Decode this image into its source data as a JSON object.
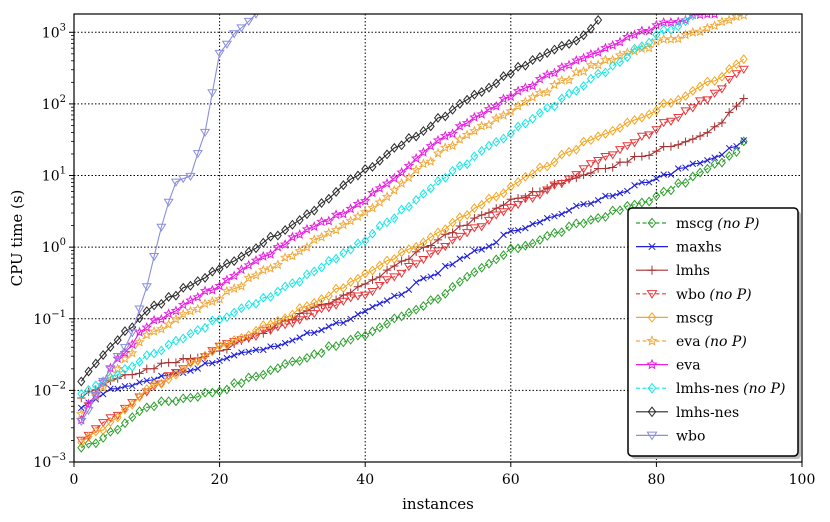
{
  "chart_data": {
    "type": "line",
    "title": "",
    "xlabel": "instances",
    "ylabel": "CPU time (s)",
    "xlim": [
      0,
      100
    ],
    "ylim": [
      0.001,
      1800
    ],
    "yscale": "log",
    "grid": true,
    "legend_position": "bottom-right",
    "x_ticks": [
      "0",
      "20",
      "40",
      "60",
      "80",
      "100"
    ],
    "x_tick_values": [
      0,
      20,
      40,
      60,
      80,
      100
    ],
    "y_ticks": [
      {
        "base": "10",
        "exp": "−3",
        "value": 0.001
      },
      {
        "base": "10",
        "exp": "−2",
        "value": 0.01
      },
      {
        "base": "10",
        "exp": "−1",
        "value": 0.1
      },
      {
        "base": "10",
        "exp": "0",
        "value": 1
      },
      {
        "base": "10",
        "exp": "1",
        "value": 10
      },
      {
        "base": "10",
        "exp": "2",
        "value": 100
      },
      {
        "base": "10",
        "exp": "3",
        "value": 1000
      }
    ],
    "series": [
      {
        "label": "mscg",
        "note": "(no P)",
        "color": "#2ca02c",
        "dash": "dashed",
        "marker": "diamond",
        "count": 92,
        "anchors": [
          [
            1,
            0.0015
          ],
          [
            5,
            0.0025
          ],
          [
            10,
            0.006
          ],
          [
            20,
            0.01
          ],
          [
            30,
            0.025
          ],
          [
            40,
            0.06
          ],
          [
            50,
            0.2
          ],
          [
            60,
            0.9
          ],
          [
            70,
            2.2
          ],
          [
            80,
            5
          ],
          [
            90,
            18
          ],
          [
            92,
            28
          ]
        ]
      },
      {
        "label": "maxhs",
        "note": "",
        "color": "#1f1fd8",
        "dash": "solid",
        "marker": "x",
        "count": 92,
        "anchors": [
          [
            1,
            0.006
          ],
          [
            5,
            0.01
          ],
          [
            10,
            0.013
          ],
          [
            20,
            0.026
          ],
          [
            30,
            0.05
          ],
          [
            40,
            0.12
          ],
          [
            50,
            0.45
          ],
          [
            60,
            1.6
          ],
          [
            70,
            4
          ],
          [
            80,
            9
          ],
          [
            88,
            18
          ],
          [
            92,
            30
          ]
        ]
      },
      {
        "label": "lmhs",
        "note": "",
        "color": "#a83232",
        "dash": "solid",
        "marker": "plus",
        "count": 92,
        "anchors": [
          [
            1,
            0.008
          ],
          [
            5,
            0.013
          ],
          [
            10,
            0.02
          ],
          [
            20,
            0.035
          ],
          [
            30,
            0.1
          ],
          [
            40,
            0.3
          ],
          [
            50,
            1.3
          ],
          [
            60,
            4.5
          ],
          [
            70,
            10
          ],
          [
            80,
            22
          ],
          [
            88,
            45
          ],
          [
            92,
            120
          ]
        ]
      },
      {
        "label": "wbo",
        "note": "(no P)",
        "color": "#e8383c",
        "dash": "dashed",
        "marker": "triangle-down",
        "count": 92,
        "anchors": [
          [
            1,
            0.002
          ],
          [
            5,
            0.004
          ],
          [
            10,
            0.01
          ],
          [
            20,
            0.04
          ],
          [
            30,
            0.09
          ],
          [
            40,
            0.22
          ],
          [
            50,
            0.9
          ],
          [
            60,
            3.5
          ],
          [
            70,
            12
          ],
          [
            80,
            45
          ],
          [
            88,
            140
          ],
          [
            92,
            320
          ]
        ]
      },
      {
        "label": "mscg",
        "note": "",
        "color": "#f5a623",
        "dash": "solid",
        "marker": "diamond",
        "count": 92,
        "anchors": [
          [
            1,
            0.0018
          ],
          [
            5,
            0.0035
          ],
          [
            10,
            0.01
          ],
          [
            20,
            0.04
          ],
          [
            30,
            0.12
          ],
          [
            40,
            0.4
          ],
          [
            50,
            1.6
          ],
          [
            60,
            7
          ],
          [
            70,
            28
          ],
          [
            80,
            85
          ],
          [
            88,
            220
          ],
          [
            92,
            400
          ]
        ]
      },
      {
        "label": "eva",
        "note": "(no P)",
        "color": "#f2a93b",
        "dash": "dashed",
        "marker": "star",
        "count": 92,
        "anchors": [
          [
            1,
            0.005
          ],
          [
            5,
            0.015
          ],
          [
            10,
            0.06
          ],
          [
            20,
            0.2
          ],
          [
            30,
            0.8
          ],
          [
            40,
            3
          ],
          [
            50,
            20
          ],
          [
            60,
            80
          ],
          [
            70,
            300
          ],
          [
            80,
            700
          ],
          [
            88,
            1200
          ],
          [
            92,
            1700
          ]
        ]
      },
      {
        "label": "eva",
        "note": "",
        "color": "#e81ee0",
        "dash": "solid",
        "marker": "star",
        "count": 88,
        "anchors": [
          [
            1,
            0.004
          ],
          [
            5,
            0.02
          ],
          [
            10,
            0.08
          ],
          [
            20,
            0.3
          ],
          [
            30,
            1.3
          ],
          [
            40,
            4.5
          ],
          [
            50,
            30
          ],
          [
            60,
            130
          ],
          [
            70,
            450
          ],
          [
            80,
            1200
          ],
          [
            86,
            1800
          ]
        ]
      },
      {
        "label": "lmhs-nes",
        "note": "(no P)",
        "color": "#16e6e6",
        "dash": "dashed",
        "marker": "diamond",
        "count": 86,
        "anchors": [
          [
            1,
            0.009
          ],
          [
            5,
            0.015
          ],
          [
            10,
            0.03
          ],
          [
            20,
            0.1
          ],
          [
            30,
            0.3
          ],
          [
            40,
            1.3
          ],
          [
            50,
            8
          ],
          [
            60,
            40
          ],
          [
            70,
            180
          ],
          [
            80,
            900
          ],
          [
            86,
            1800
          ]
        ]
      },
      {
        "label": "lmhs-nes",
        "note": "",
        "color": "#2a2a2a",
        "dash": "solid",
        "marker": "diamond",
        "count": 73,
        "anchors": [
          [
            1,
            0.013
          ],
          [
            5,
            0.04
          ],
          [
            10,
            0.13
          ],
          [
            20,
            0.5
          ],
          [
            30,
            2
          ],
          [
            40,
            12
          ],
          [
            50,
            60
          ],
          [
            60,
            280
          ],
          [
            65,
            500
          ],
          [
            70,
            900
          ],
          [
            73,
            1800
          ]
        ]
      },
      {
        "label": "wbo",
        "note": "",
        "color": "#8a8ee0",
        "dash": "solid",
        "marker": "triangle-down",
        "count": 25,
        "anchors": [
          [
            1,
            0.0035
          ],
          [
            3,
            0.008
          ],
          [
            5,
            0.02
          ],
          [
            8,
            0.06
          ],
          [
            10,
            0.3
          ],
          [
            12,
            2
          ],
          [
            14,
            8
          ],
          [
            16,
            10
          ],
          [
            18,
            40
          ],
          [
            20,
            500
          ],
          [
            22,
            1000
          ],
          [
            25,
            1800
          ]
        ]
      }
    ]
  }
}
